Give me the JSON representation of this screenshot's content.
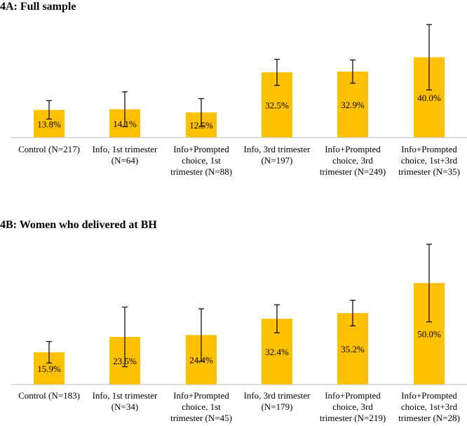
{
  "colors": {
    "bar": "#FFC000",
    "axis": "#BFBFBF",
    "errorbar": "#000000"
  },
  "chart_data": [
    {
      "type": "bar",
      "title": "4A: Full sample",
      "categories": [
        [
          "Control (N=217)"
        ],
        [
          "Info, 1st trimester",
          "(N=64)"
        ],
        [
          "Info+Prompted",
          "choice, 1st",
          "trimester (N=88)"
        ],
        [
          "Info, 3rd trimester",
          "(N=197)"
        ],
        [
          "Info+Prompted",
          "choice, 3rd",
          "trimester (N=249)"
        ],
        [
          "Info+Prompted",
          "choice, 1st+3rd",
          "trimester (N=35)"
        ]
      ],
      "values": [
        13.8,
        14.1,
        12.5,
        32.5,
        32.9,
        40.0
      ],
      "value_labels": [
        "13.8%",
        "14.1%",
        "12.5%",
        "32.5%",
        "32.9%",
        "40.0%"
      ],
      "error_low": [
        9.2,
        5.4,
        5.6,
        26.0,
        27.1,
        23.7
      ],
      "error_high": [
        18.4,
        22.8,
        19.4,
        39.0,
        38.7,
        56.3
      ],
      "ylim": [
        0,
        56.3
      ],
      "xlabel": "",
      "ylabel": ""
    },
    {
      "type": "bar",
      "title": "4B: Women who delivered at BH",
      "categories": [
        [
          "Control (N=183)"
        ],
        [
          "Info, 1st trimester",
          "(N=34)"
        ],
        [
          "Info+Prompted",
          "choice, 1st",
          "trimester (N=45)"
        ],
        [
          "Info, 3rd trimester",
          "(N=179)"
        ],
        [
          "Info+Prompted",
          "choice, 3rd",
          "trimester (N=219)"
        ],
        [
          "Info+Prompted",
          "choice, 1st+3rd",
          "trimester (N=28)"
        ]
      ],
      "values": [
        15.9,
        23.5,
        24.4,
        32.4,
        35.2,
        50.0
      ],
      "value_labels": [
        "15.9%",
        "23.5%",
        "24.4%",
        "32.4%",
        "35.2%",
        "50.0%"
      ],
      "error_low": [
        10.6,
        8.8,
        11.5,
        25.5,
        28.9,
        30.9
      ],
      "error_high": [
        21.2,
        38.2,
        37.3,
        39.3,
        41.5,
        69.1
      ],
      "ylim": [
        0,
        69.1
      ],
      "xlabel": "",
      "ylabel": ""
    }
  ]
}
